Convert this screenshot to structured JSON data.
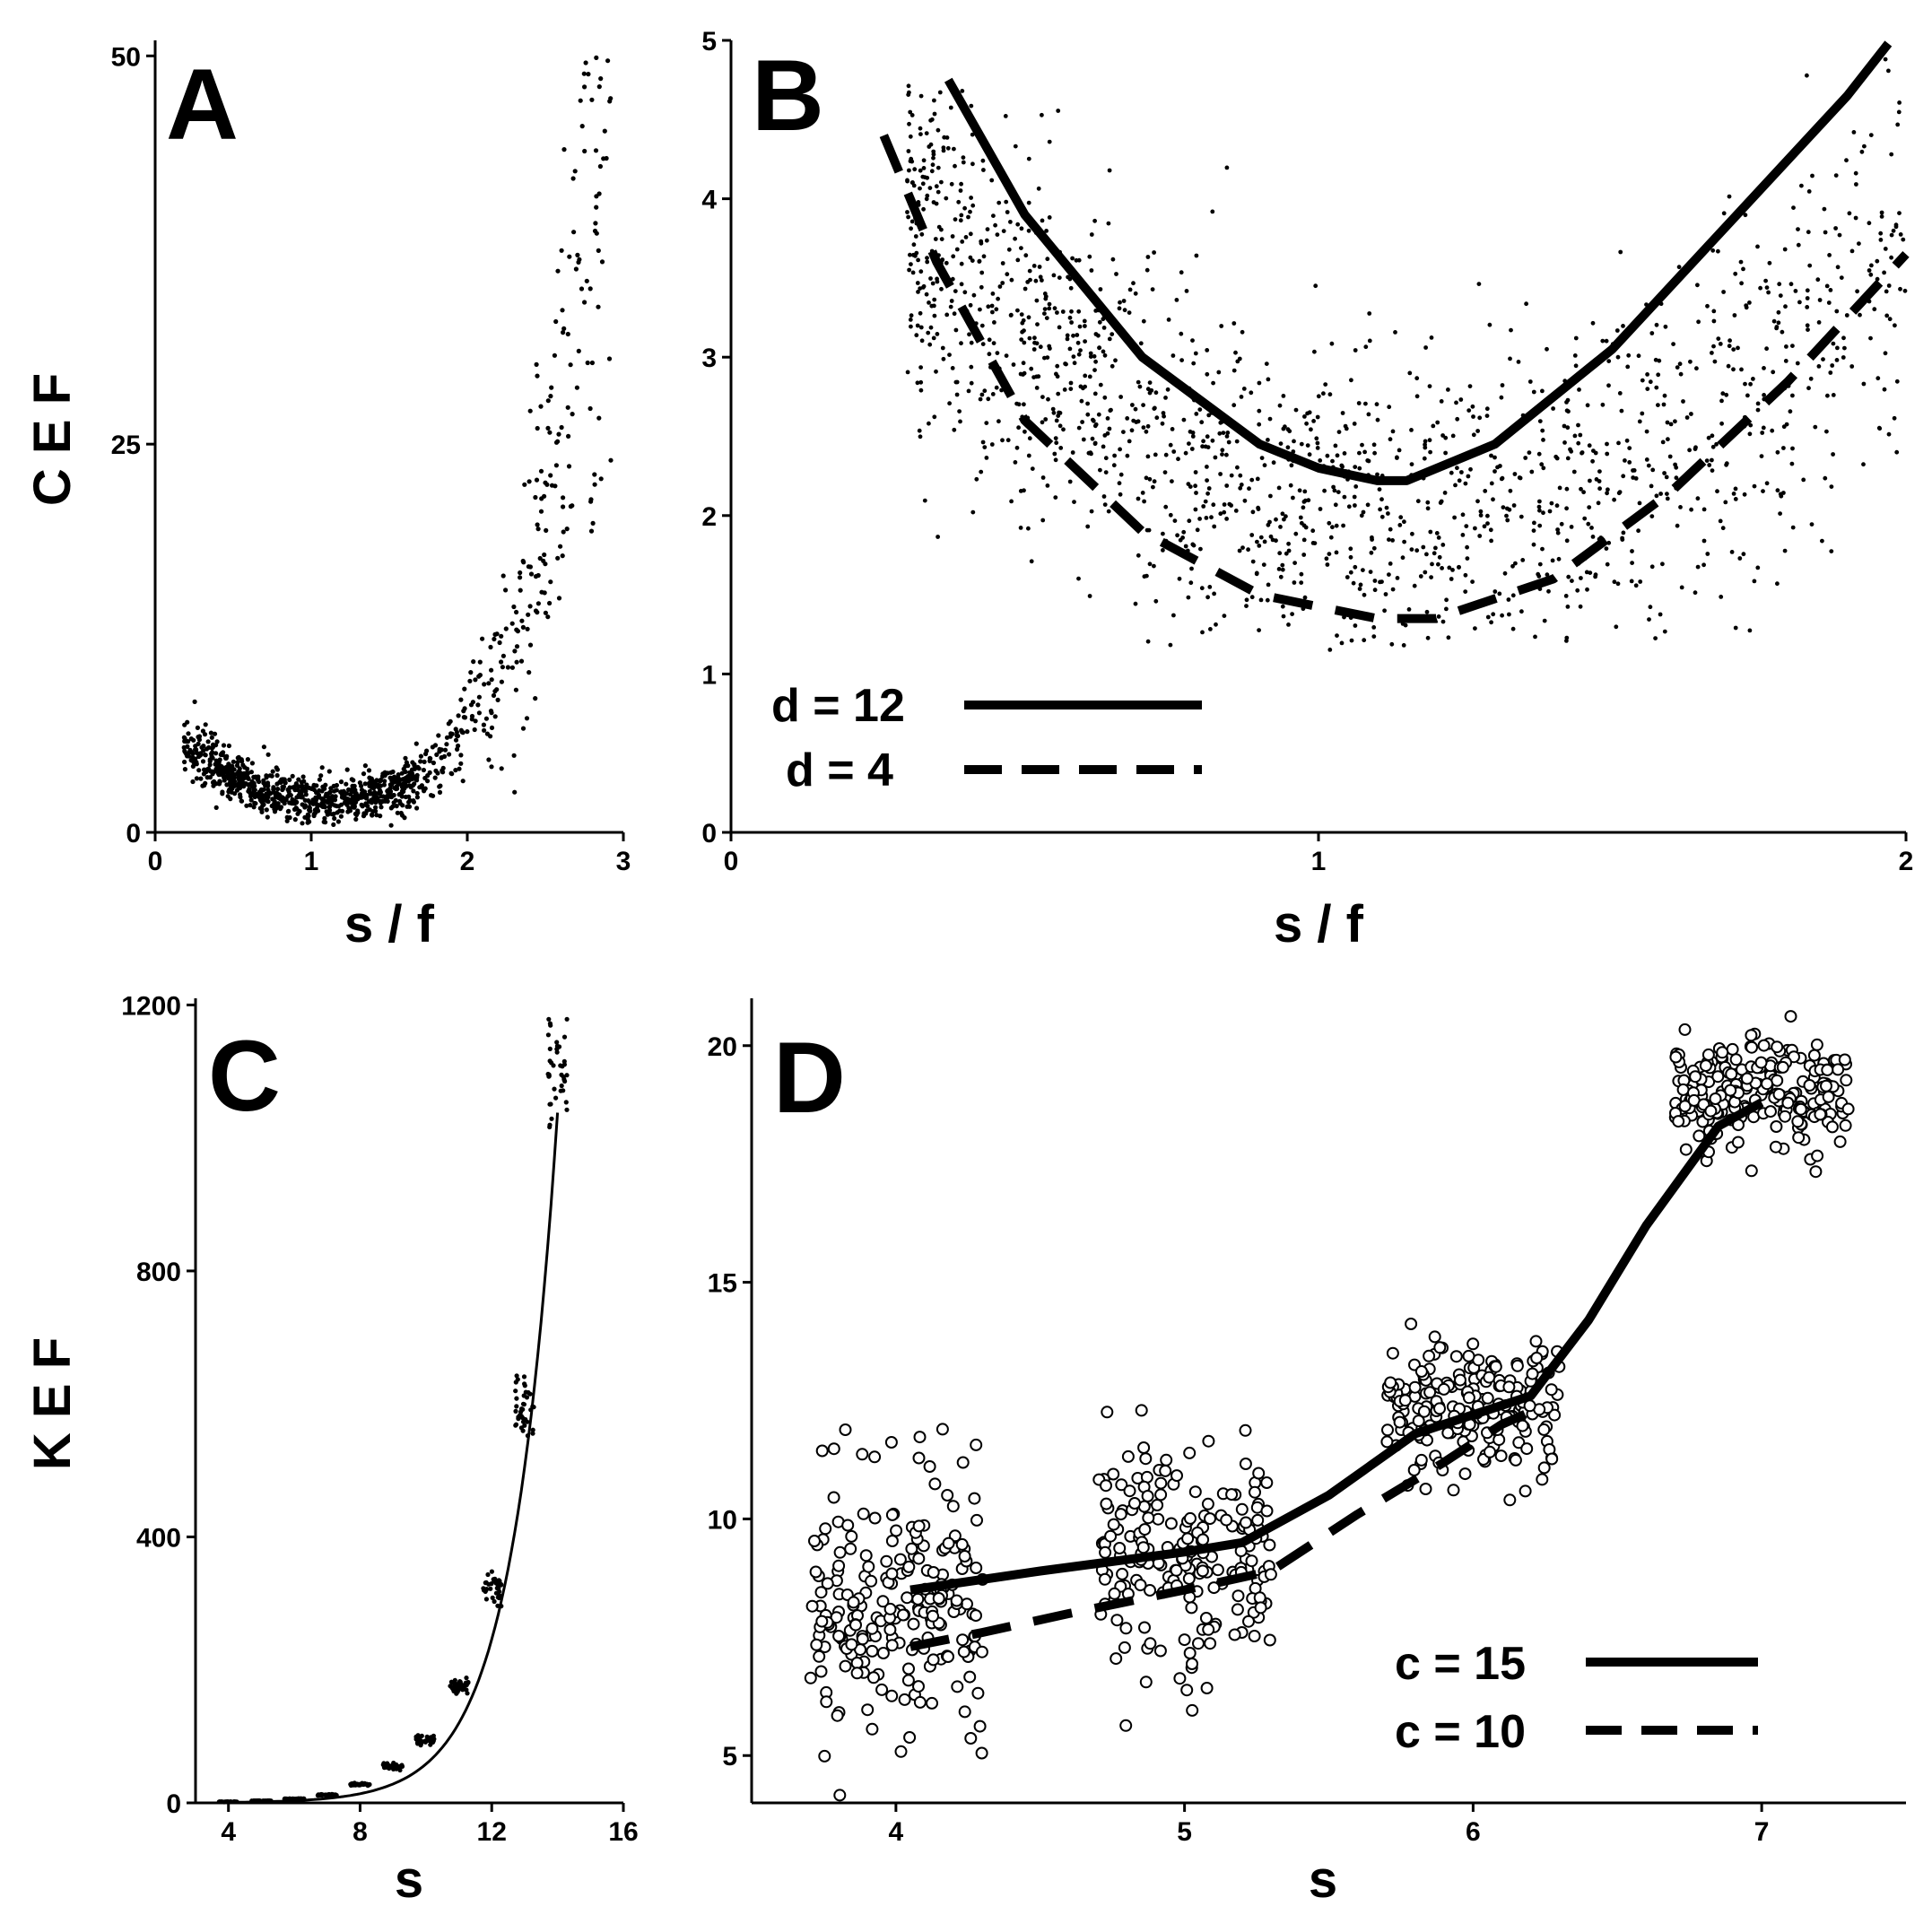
{
  "figure": {
    "ylabel_top": "C E F",
    "ylabel_bottom": "K E F"
  },
  "chart_data": [
    {
      "id": "A",
      "type": "scatter",
      "panel_label": "A",
      "xlabel": "s / f",
      "ylabel": "C E F",
      "xlim": [
        0,
        3
      ],
      "ylim": [
        0,
        51
      ],
      "x_ticks": [
        0,
        1,
        2,
        3
      ],
      "y_ticks": [
        0,
        25,
        50
      ],
      "points_desc": "about 1000 points; U-shape with minimum ~2 near s/f = 1.1, fanning out to ~50 at s/f = 2.8",
      "sample_points": [
        [
          0.2,
          6.5
        ],
        [
          0.5,
          4
        ],
        [
          0.8,
          2.6
        ],
        [
          1.1,
          2.0
        ],
        [
          1.4,
          2.8
        ],
        [
          1.7,
          5
        ],
        [
          2.0,
          9
        ],
        [
          2.3,
          15
        ],
        [
          2.6,
          25
        ],
        [
          2.8,
          50
        ]
      ]
    },
    {
      "id": "B",
      "type": "scatter",
      "panel_label": "B",
      "xlabel": "s / f",
      "ylabel": "",
      "xlim": [
        0,
        2
      ],
      "ylim": [
        0,
        5
      ],
      "x_ticks": [
        0,
        1,
        2
      ],
      "y_ticks": [
        0,
        1,
        2,
        3,
        4,
        5
      ],
      "series": [
        {
          "name": "d = 12",
          "style": "solid",
          "x": [
            0.37,
            0.5,
            0.7,
            0.9,
            1.0,
            1.1,
            1.15,
            1.3,
            1.5,
            1.7,
            1.9,
            1.97
          ],
          "y": [
            4.75,
            3.9,
            3.0,
            2.45,
            2.3,
            2.22,
            2.22,
            2.45,
            3.05,
            3.85,
            4.65,
            4.98
          ]
        },
        {
          "name": "d = 4",
          "style": "dashed",
          "x": [
            0.26,
            0.35,
            0.5,
            0.7,
            0.9,
            1.1,
            1.2,
            1.4,
            1.6,
            1.8,
            2.0
          ],
          "y": [
            4.4,
            3.6,
            2.6,
            1.9,
            1.5,
            1.35,
            1.35,
            1.6,
            2.15,
            2.85,
            3.65
          ]
        }
      ],
      "legend": [
        {
          "label": "d = 12",
          "style": "solid"
        },
        {
          "label": "d = 4",
          "style": "dashed"
        }
      ],
      "legend_position": "bottom-left"
    },
    {
      "id": "C",
      "type": "scatter",
      "panel_label": "C",
      "xlabel": "s",
      "ylabel": "K E F",
      "xlim": [
        3,
        16
      ],
      "ylim": [
        0,
        1210
      ],
      "x_ticks": [
        4,
        8,
        12,
        16
      ],
      "y_ticks": [
        0,
        400,
        800,
        1200
      ],
      "clusters": [
        {
          "x": 4,
          "y": 1.5
        },
        {
          "x": 5,
          "y": 3
        },
        {
          "x": 6,
          "y": 6
        },
        {
          "x": 7,
          "y": 12
        },
        {
          "x": 8,
          "y": 28
        },
        {
          "x": 9,
          "y": 55
        },
        {
          "x": 10,
          "y": 95
        },
        {
          "x": 11,
          "y": 175
        },
        {
          "x": 12,
          "y": 325
        },
        {
          "x": 13,
          "y": 595
        },
        {
          "x": 14,
          "y": 1100
        }
      ],
      "curve": "exponential fit, y = 0.0435 * e^(0.72 x), plotted from s = 4 to 14"
    },
    {
      "id": "D",
      "type": "scatter",
      "panel_label": "D",
      "xlabel": "s",
      "ylabel": "",
      "xlim": [
        3.5,
        7.5
      ],
      "ylim": [
        4,
        21
      ],
      "x_ticks": [
        4,
        5,
        6,
        7
      ],
      "y_ticks": [
        5,
        10,
        15,
        20
      ],
      "clusters": [
        {
          "x": 4,
          "y_center": 8.2,
          "spread": 3.2
        },
        {
          "x": 5,
          "y_center": 9.2,
          "spread": 2.4
        },
        {
          "x": 6,
          "y_center": 12.4,
          "spread": 1.5
        },
        {
          "x": 7,
          "y_center": 19,
          "spread": 1.2
        }
      ],
      "series": [
        {
          "name": "c = 15",
          "style": "solid",
          "x": [
            4.05,
            4.5,
            5.0,
            5.2,
            5.5,
            5.8,
            6.0,
            6.2,
            6.4,
            6.6,
            6.85,
            7.0
          ],
          "y": [
            8.5,
            8.9,
            9.3,
            9.5,
            10.5,
            11.8,
            12.2,
            12.6,
            14.2,
            16.2,
            18.3,
            18.8
          ]
        },
        {
          "name": "c = 10",
          "style": "dashed",
          "x": [
            4.05,
            4.3,
            4.6,
            5.0,
            5.3,
            5.6,
            5.9,
            6.1,
            6.25
          ],
          "y": [
            7.3,
            7.6,
            8.0,
            8.5,
            8.9,
            10.1,
            11.2,
            12.0,
            12.4
          ]
        }
      ],
      "legend": [
        {
          "label": "c = 15",
          "style": "solid"
        },
        {
          "label": "c = 10",
          "style": "dashed"
        }
      ],
      "legend_position": "bottom-right"
    }
  ]
}
